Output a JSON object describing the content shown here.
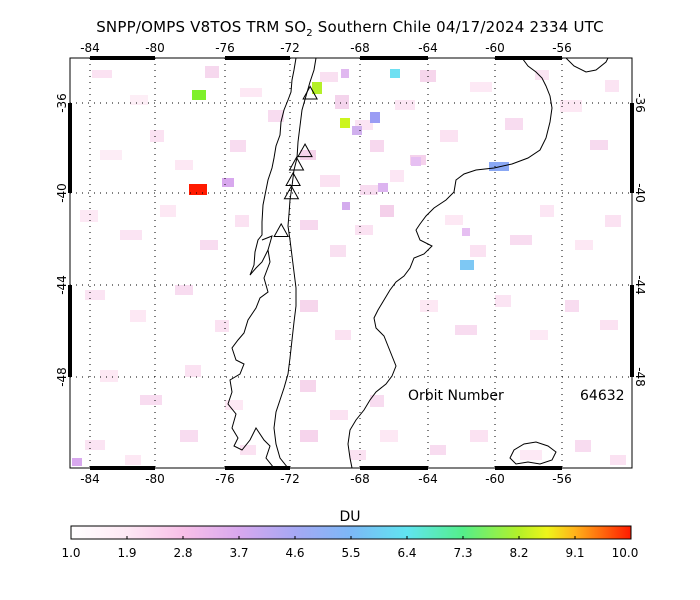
{
  "title": {
    "prefix": "SNPP/OMPS V8TOS TRM SO",
    "subscript": "2",
    "suffix": " Southern Chile 04/17/2024 2334 UTC"
  },
  "lon_ticks": [
    "-84",
    "-80",
    "-76",
    "-72",
    "-68",
    "-64",
    "-60",
    "-56"
  ],
  "lat_ticks": [
    "-36",
    "-40",
    "-44",
    "-48"
  ],
  "orbit": {
    "label": "Orbit Number",
    "value": "64632"
  },
  "colorbar": {
    "units": "DU",
    "labels": [
      "1.0",
      "1.9",
      "2.8",
      "3.7",
      "4.6",
      "5.5",
      "6.4",
      "7.3",
      "8.2",
      "9.1",
      "10.0"
    ],
    "range": [
      1.0,
      10.0
    ]
  },
  "map": {
    "lon_range": [
      -85,
      -52
    ],
    "lat_range": [
      -52.5,
      -34
    ],
    "volcano_marker": "triangle-icon",
    "volcanoes": [
      {
        "lon": -70.9,
        "lat": -35.6
      },
      {
        "lon": -71.2,
        "lat": -38.2
      },
      {
        "lon": -71.7,
        "lat": -38.8
      },
      {
        "lon": -71.9,
        "lat": -39.5
      },
      {
        "lon": -72.0,
        "lat": -40.1
      },
      {
        "lon": -72.6,
        "lat": -41.8
      }
    ]
  }
}
